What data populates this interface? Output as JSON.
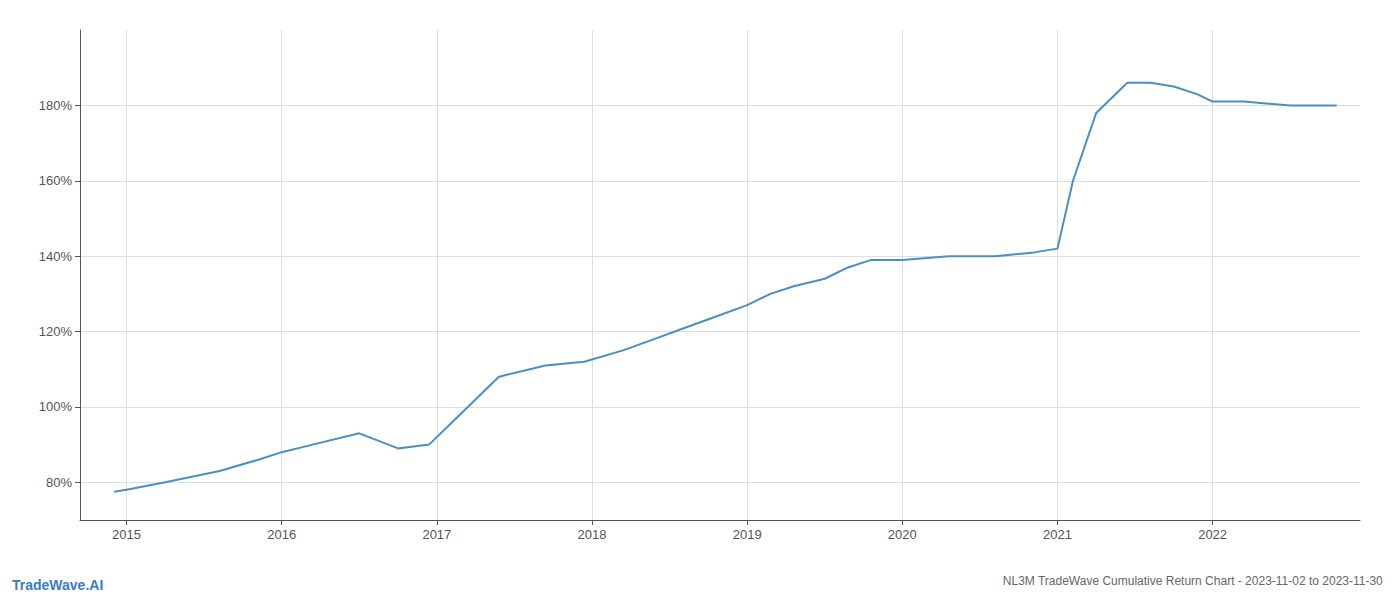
{
  "chart_data": {
    "type": "line",
    "title": "NL3M TradeWave Cumulative Return Chart - 2023-11-02 to 2023-11-30",
    "annotations": [
      {
        "text": "TradeWave.AI",
        "color": "#3a7bbf"
      }
    ],
    "x": [
      2014.92,
      2015.0,
      2015.25,
      2015.6,
      2015.85,
      2016.0,
      2016.2,
      2016.5,
      2016.75,
      2016.95,
      2017.1,
      2017.4,
      2017.7,
      2017.95,
      2018.2,
      2018.4,
      2018.6,
      2018.8,
      2019.0,
      2019.15,
      2019.3,
      2019.5,
      2019.65,
      2019.8,
      2020.0,
      2020.3,
      2020.6,
      2020.85,
      2021.0,
      2021.1,
      2021.25,
      2021.45,
      2021.6,
      2021.75,
      2021.9,
      2022.0,
      2022.2,
      2022.5,
      2022.8
    ],
    "values": [
      77.5,
      78,
      80,
      83,
      86,
      88,
      90,
      93,
      89,
      90,
      96,
      108,
      111,
      112,
      115,
      118,
      121,
      124,
      127,
      130,
      132,
      134,
      137,
      139,
      139,
      140,
      140,
      141,
      142,
      160,
      178,
      186,
      186,
      185,
      183,
      181,
      181,
      180,
      180
    ],
    "color": "#4a8fc0",
    "xlim": [
      2014.7,
      2022.95
    ],
    "ylim": [
      70,
      200
    ],
    "xticks": [
      2015,
      2016,
      2017,
      2018,
      2019,
      2020,
      2021,
      2022
    ],
    "yticks": [
      {
        "value": 80,
        "label": "80%"
      },
      {
        "value": 100,
        "label": "100%"
      },
      {
        "value": 120,
        "label": "120%"
      },
      {
        "value": 140,
        "label": "140%"
      },
      {
        "value": 160,
        "label": "160%"
      },
      {
        "value": 180,
        "label": "180%"
      }
    ],
    "grid": true
  }
}
